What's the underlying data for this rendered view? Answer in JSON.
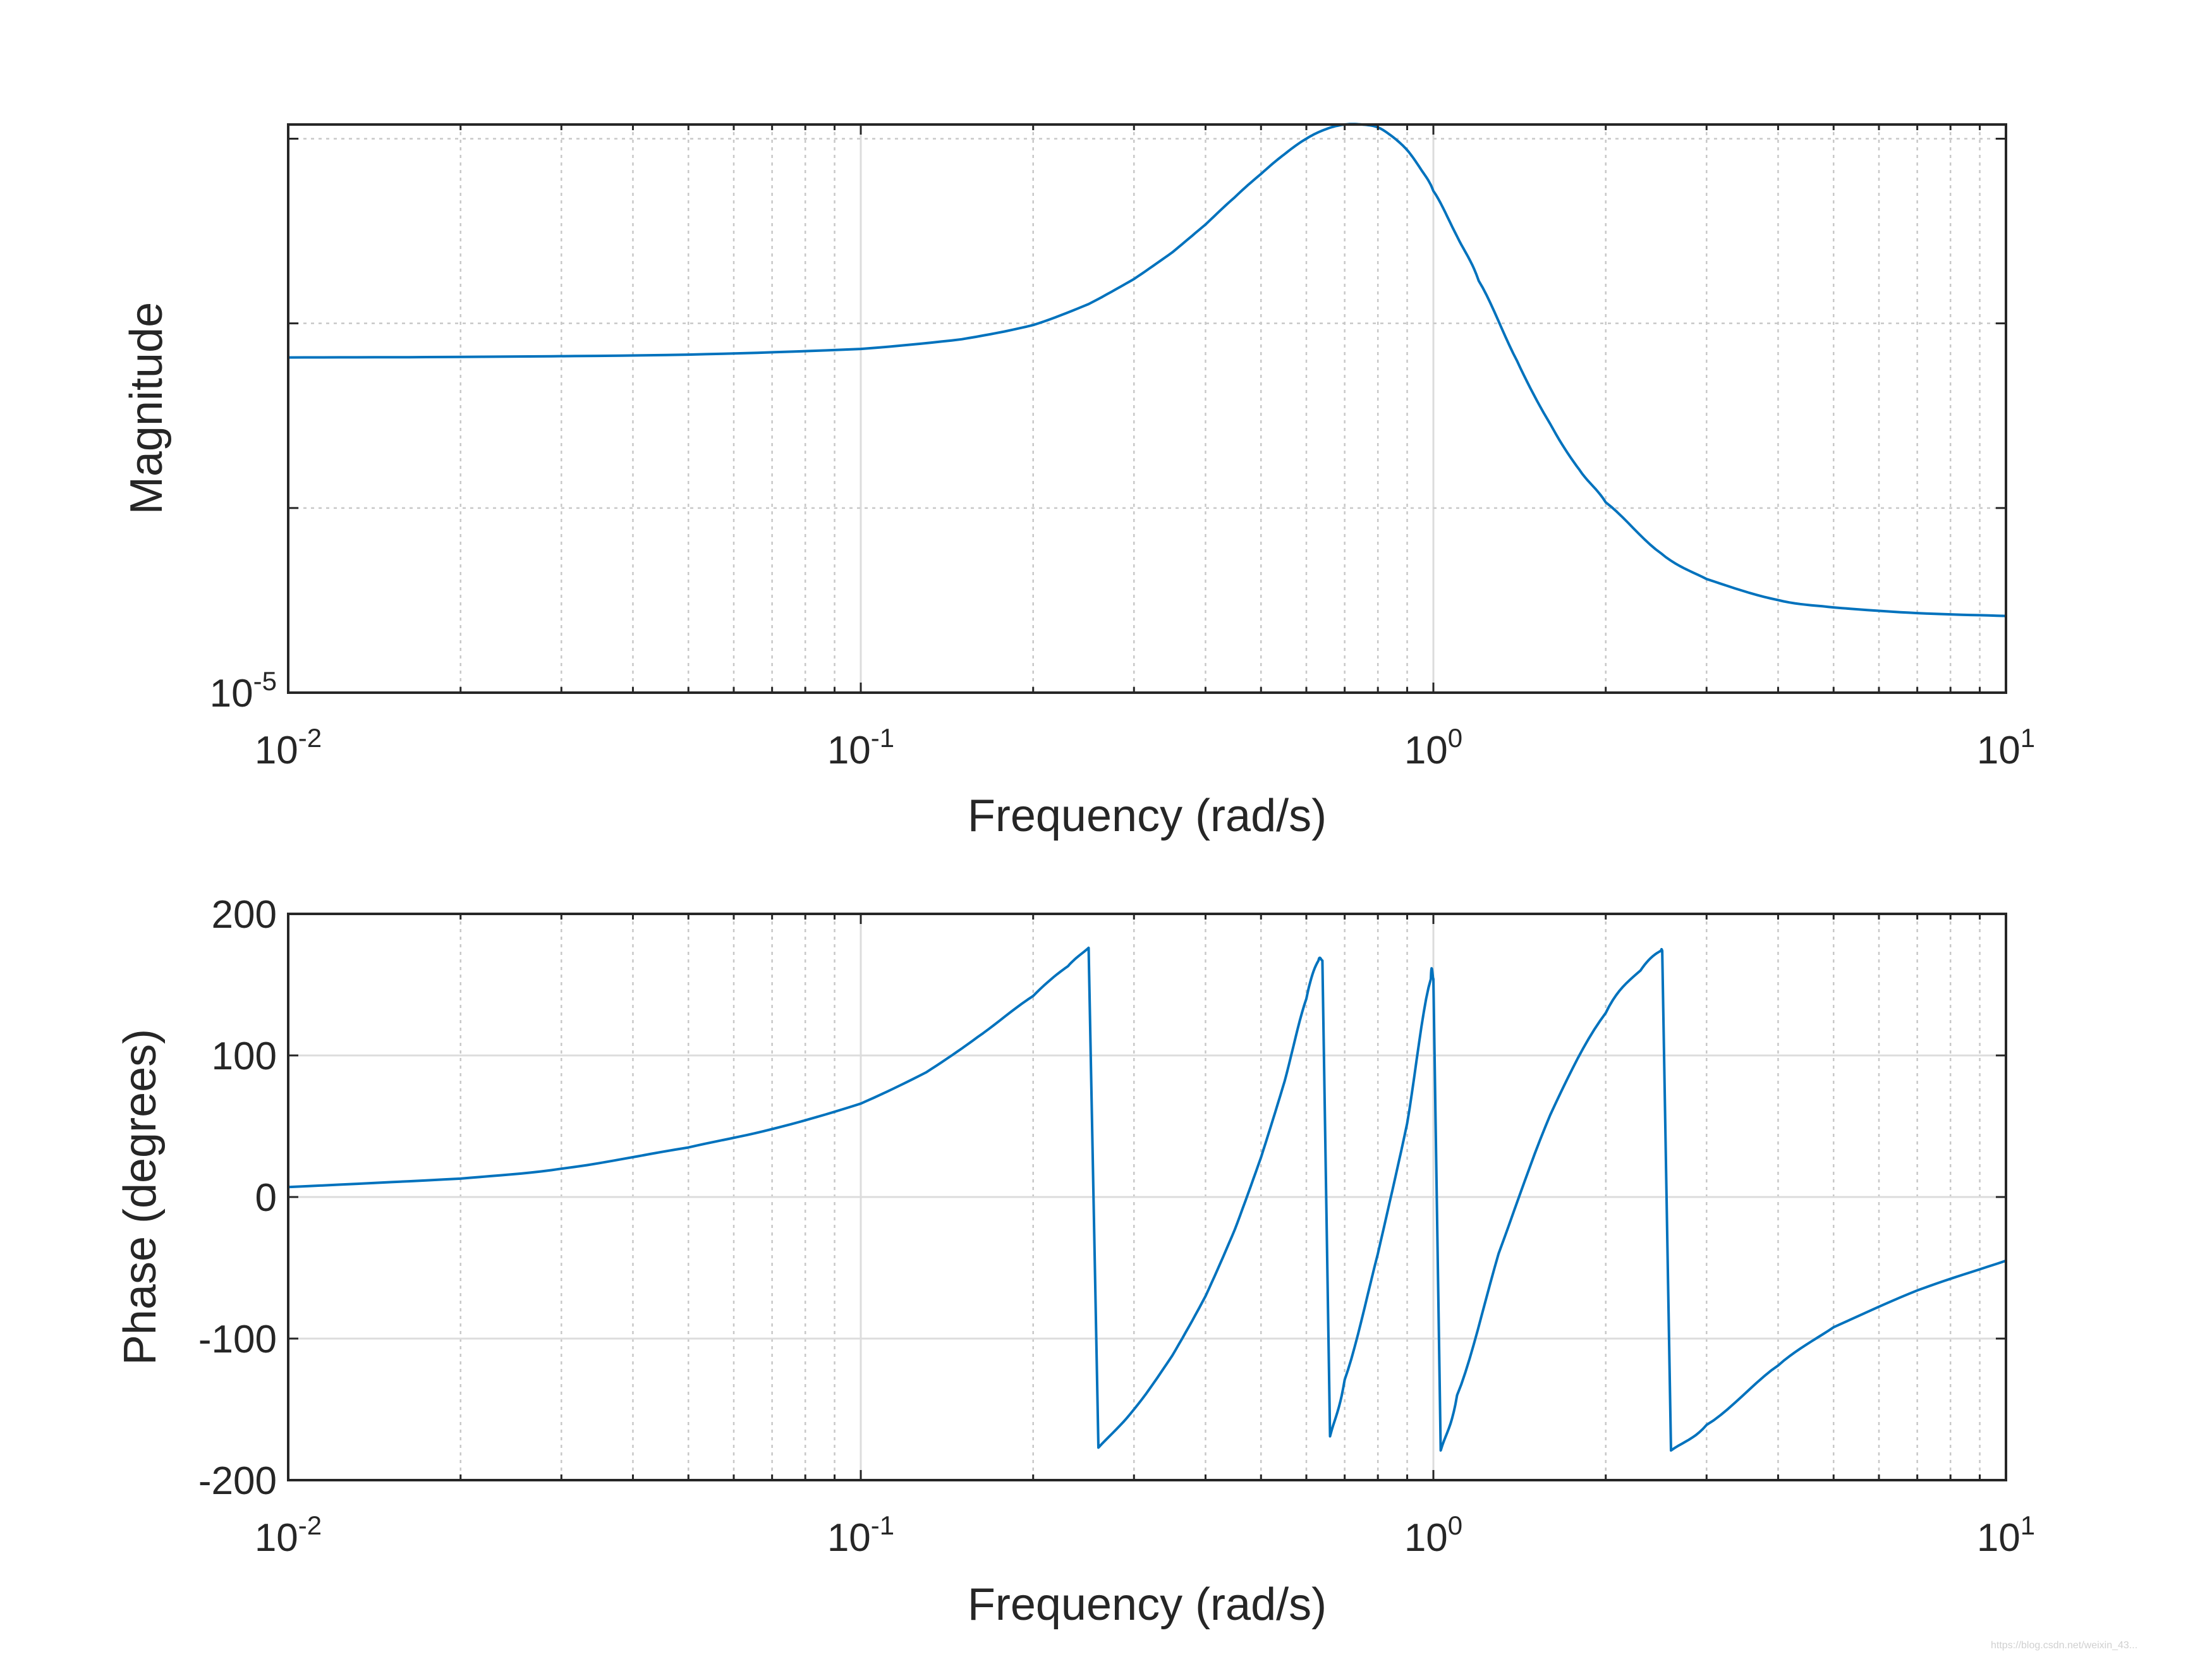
{
  "chart_data": [
    {
      "type": "line",
      "name": "magnitude",
      "title": "",
      "xlabel": "Frequency (rad/s)",
      "ylabel": "Magnitude",
      "xscale": "log",
      "xlim": [
        0.01,
        10
      ],
      "x_ticks": [
        {
          "base": "10",
          "exp": "-2",
          "value": 0.01
        },
        {
          "base": "10",
          "exp": "-1",
          "value": 0.1
        },
        {
          "base": "10",
          "exp": "0",
          "value": 1
        },
        {
          "base": "10",
          "exp": "1",
          "value": 10
        }
      ],
      "ylim": [
        0,
        100
      ],
      "y_ticks": [
        {
          "base": "10",
          "exp": "-5",
          "value": 0
        }
      ],
      "y_gridlines": [
        32.5,
        65,
        97.5
      ],
      "grid": true,
      "series": [
        {
          "name": "magnitude",
          "color": "#0072bd",
          "x": [
            0.01,
            0.02,
            0.05,
            0.1,
            0.15,
            0.2,
            0.25,
            0.3,
            0.35,
            0.4,
            0.45,
            0.5,
            0.55,
            0.6,
            0.65,
            0.7,
            0.75,
            0.8,
            0.85,
            0.9,
            0.95,
            1.0,
            1.1,
            1.2,
            1.4,
            1.6,
            1.8,
            2.0,
            2.5,
            3.0,
            4.0,
            5.0,
            7.0,
            10.0
          ],
          "values": [
            59,
            59.1,
            59.5,
            60.5,
            62.2,
            64.7,
            68.4,
            72.8,
            77.5,
            82.4,
            87.2,
            91.3,
            94.8,
            97.5,
            99.2,
            100,
            100,
            99.5,
            97.8,
            95.5,
            92.2,
            88.3,
            80.3,
            72.5,
            58.4,
            47.3,
            39.2,
            33.5,
            24.5,
            20,
            16.3,
            15,
            14,
            13.5
          ]
        }
      ]
    },
    {
      "type": "line",
      "name": "phase",
      "title": "",
      "xlabel": "Frequency (rad/s)",
      "ylabel": "Phase (degrees)",
      "xscale": "log",
      "xlim": [
        0.01,
        10
      ],
      "x_ticks": [
        {
          "base": "10",
          "exp": "-2",
          "value": 0.01
        },
        {
          "base": "10",
          "exp": "-1",
          "value": 0.1
        },
        {
          "base": "10",
          "exp": "0",
          "value": 1
        },
        {
          "base": "10",
          "exp": "1",
          "value": 10
        }
      ],
      "ylim": [
        -200,
        200
      ],
      "y_ticks": [
        {
          "label": "200",
          "value": 200
        },
        {
          "label": "100",
          "value": 100
        },
        {
          "label": "0",
          "value": 0
        },
        {
          "label": "-100",
          "value": -100
        },
        {
          "label": "-200",
          "value": -200
        }
      ],
      "grid": true,
      "series": [
        {
          "name": "phase",
          "color": "#0072bd",
          "x": [
            0.01,
            0.02,
            0.03,
            0.05,
            0.07,
            0.1,
            0.13,
            0.16,
            0.2,
            0.23,
            0.25,
            0.26,
            0.3,
            0.35,
            0.4,
            0.45,
            0.5,
            0.55,
            0.6,
            0.63,
            0.64,
            0.66,
            0.7,
            0.8,
            0.9,
            0.99,
            1.0,
            1.03,
            1.1,
            1.3,
            1.6,
            2.0,
            2.3,
            2.5,
            2.51,
            2.6,
            3.0,
            4.0,
            5.0,
            7.0,
            10.0
          ],
          "values": [
            7,
            13,
            20,
            35,
            48,
            66,
            88,
            113,
            142,
            163,
            176,
            -177,
            -150,
            -112,
            -70,
            -23,
            28,
            82,
            140,
            167,
            167,
            -169,
            -129,
            -40,
            52,
            154,
            154,
            -179,
            -140,
            -40,
            58,
            130,
            160,
            174,
            174,
            -179,
            -161,
            -119,
            -92,
            -66,
            -45
          ]
        }
      ]
    }
  ],
  "watermark": "https://blog.csdn.net/weixin_43..."
}
